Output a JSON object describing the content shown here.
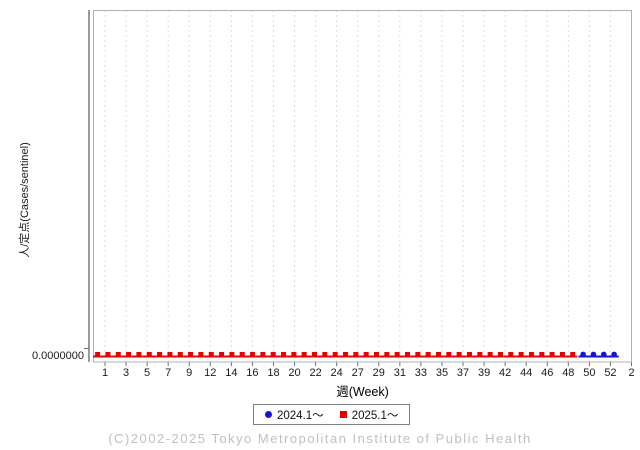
{
  "colors": {
    "grid": "#dddddd",
    "plot_border": "#b0b0b0",
    "axis": "#707070",
    "tick_text": "#1a1a1a",
    "series_2024_blue": "#1616d0",
    "series_2025_red": "#e80000",
    "copyright_gray": "#bfbfbf"
  },
  "chart_data": {
    "type": "line",
    "title": "",
    "xlabel": "週(Week)",
    "ylabel": "人/定点(Cases/sentinel)",
    "x_tick_labels": [
      "1",
      "3",
      "5",
      "7",
      "9",
      "12",
      "14",
      "16",
      "18",
      "20",
      "22",
      "24",
      "27",
      "29",
      "31",
      "33",
      "35",
      "37",
      "39",
      "42",
      "44",
      "46",
      "48",
      "50",
      "52",
      "2"
    ],
    "y_tick_labels": [
      "0.0000000"
    ],
    "grid": "vertical-dashed",
    "legend_position": "bottom-center",
    "n_slots": 51,
    "series": [
      {
        "name": "2024.1～",
        "color": "#1616d0",
        "marker": "circle",
        "slot_start": 47,
        "values": [
          0,
          0,
          0,
          0
        ]
      },
      {
        "name": "2025.1～",
        "color": "#e80000",
        "marker": "square",
        "slot_start": 0,
        "values": [
          0,
          0,
          0,
          0,
          0,
          0,
          0,
          0,
          0,
          0,
          0,
          0,
          0,
          0,
          0,
          0,
          0,
          0,
          0,
          0,
          0,
          0,
          0,
          0,
          0,
          0,
          0,
          0,
          0,
          0,
          0,
          0,
          0,
          0,
          0,
          0,
          0,
          0,
          0,
          0,
          0,
          0,
          0,
          0,
          0,
          0,
          0
        ]
      }
    ]
  },
  "footer": {
    "copyright": "(C)2002-2025 Tokyo Metropolitan Institute of Public Health"
  }
}
